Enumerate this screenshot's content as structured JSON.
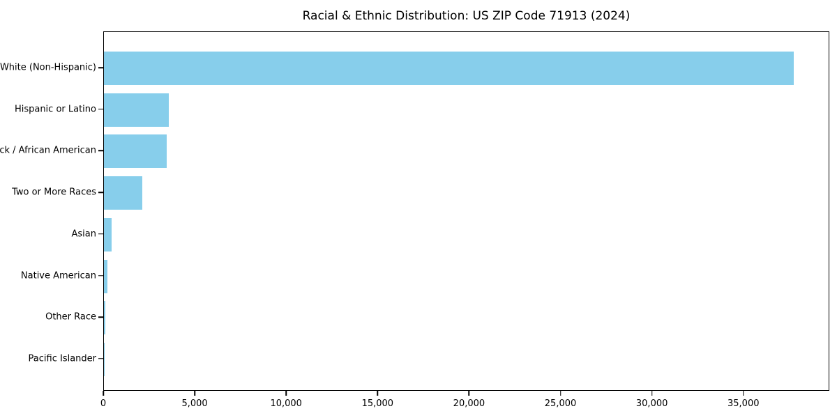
{
  "chart_data": {
    "type": "bar",
    "orientation": "horizontal",
    "title": "Racial & Ethnic Distribution: US ZIP Code 71913 (2024)",
    "categories": [
      "White (Non-Hispanic)",
      "Hispanic or Latino",
      "Black / African American",
      "Two or More Races",
      "Asian",
      "Native American",
      "Other Race",
      "Pacific Islander"
    ],
    "values": [
      37700,
      3550,
      3450,
      2100,
      420,
      180,
      60,
      25
    ],
    "xlabel": "",
    "ylabel": "",
    "xlim": [
      0,
      39700
    ],
    "xticks": [
      0,
      5000,
      10000,
      15000,
      20000,
      25000,
      30000,
      35000
    ],
    "xtick_labels": [
      "0",
      "5,000",
      "10,000",
      "15,000",
      "20,000",
      "25,000",
      "30,000",
      "35,000"
    ],
    "bar_color": "#87CEEB",
    "grid": false,
    "legend": "none",
    "frame": "full-box"
  }
}
